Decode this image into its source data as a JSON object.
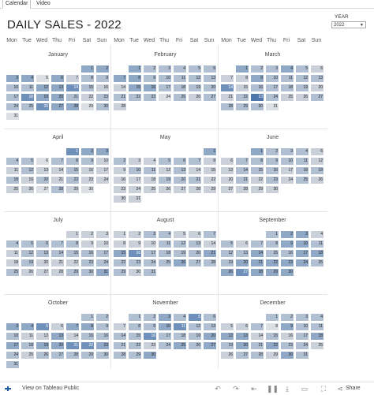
{
  "tabs": {
    "calendar": "Calendar",
    "video": "Video"
  },
  "title": "DAILY SALES - 2022",
  "year_filter": {
    "label": "YEAR",
    "value": "2022"
  },
  "weekdays": [
    "Mon",
    "Tue",
    "Wed",
    "Thu",
    "Fri",
    "Sat",
    "Sun"
  ],
  "colors": {
    "scale": [
      "#ffffff",
      "#dcdfe3",
      "#c9d0d9",
      "#b0bfd2",
      "#8fa8c6",
      "#6f90ba",
      "#4f77ab"
    ]
  },
  "months": [
    {
      "name": "January",
      "start": 5,
      "days": 31,
      "levels": [
        4,
        4,
        4,
        4,
        1,
        4,
        2,
        3,
        3,
        3,
        3,
        4,
        4,
        5,
        3,
        2,
        3,
        5,
        4,
        4,
        3,
        2,
        3,
        3,
        3,
        5,
        4,
        4,
        1,
        3,
        1
      ]
    },
    {
      "name": "February",
      "start": 1,
      "days": 28,
      "levels": [
        4,
        3,
        3,
        3,
        3,
        3,
        4,
        4,
        3,
        3,
        3,
        3,
        3,
        2,
        4,
        4,
        3,
        3,
        3,
        3,
        3,
        3,
        3,
        1,
        3,
        2,
        3,
        2
      ]
    },
    {
      "name": "March",
      "start": 1,
      "days": 31,
      "levels": [
        4,
        3,
        3,
        4,
        3,
        2,
        2,
        2,
        4,
        3,
        3,
        3,
        3,
        5,
        2,
        3,
        3,
        3,
        3,
        2,
        2,
        3,
        6,
        3,
        2,
        2,
        3,
        3,
        3,
        3,
        1
      ]
    },
    {
      "name": "April",
      "start": 4,
      "days": 30,
      "levels": [
        5,
        4,
        4,
        3,
        3,
        1,
        3,
        3,
        3,
        2,
        2,
        3,
        2,
        2,
        3,
        2,
        2,
        3,
        2,
        3,
        2,
        3,
        2,
        2,
        2,
        2,
        1,
        3,
        2,
        1
      ]
    },
    {
      "name": "May",
      "start": 6,
      "days": 31,
      "levels": [
        4,
        3,
        2,
        2,
        3,
        3,
        3,
        2,
        2,
        3,
        3,
        2,
        3,
        2,
        2,
        2,
        2,
        2,
        3,
        3,
        3,
        2,
        2,
        2,
        2,
        2,
        2,
        2,
        2,
        2,
        2
      ]
    },
    {
      "name": "June",
      "start": 2,
      "days": 30,
      "levels": [
        4,
        3,
        3,
        3,
        2,
        2,
        3,
        3,
        3,
        3,
        3,
        2,
        2,
        3,
        3,
        3,
        2,
        3,
        3,
        2,
        3,
        2,
        3,
        2,
        3,
        2,
        2,
        2,
        2,
        2
      ]
    },
    {
      "name": "July",
      "start": 4,
      "days": 31,
      "levels": [
        2,
        2,
        2,
        3,
        3,
        3,
        3,
        3,
        2,
        2,
        2,
        3,
        3,
        3,
        3,
        3,
        3,
        2,
        3,
        2,
        2,
        2,
        3,
        3,
        3,
        2,
        2,
        2,
        3,
        3,
        4
      ]
    },
    {
      "name": "August",
      "start": 0,
      "days": 31,
      "levels": [
        2,
        2,
        3,
        3,
        2,
        2,
        3,
        2,
        2,
        2,
        3,
        3,
        3,
        2,
        4,
        5,
        3,
        3,
        3,
        3,
        4,
        3,
        3,
        3,
        3,
        4,
        3,
        3,
        3,
        2,
        3
      ]
    },
    {
      "name": "September",
      "start": 3,
      "days": 30,
      "levels": [
        3,
        4,
        4,
        2,
        3,
        2,
        3,
        3,
        4,
        4,
        3,
        3,
        3,
        4,
        3,
        3,
        4,
        4,
        3,
        4,
        4,
        4,
        4,
        4,
        3,
        4,
        5,
        4,
        4,
        4
      ]
    },
    {
      "name": "October",
      "start": 5,
      "days": 31,
      "levels": [
        3,
        3,
        4,
        4,
        5,
        2,
        4,
        4,
        3,
        3,
        2,
        2,
        4,
        2,
        3,
        3,
        4,
        3,
        4,
        4,
        5,
        5,
        4,
        3,
        2,
        3,
        3,
        3,
        3,
        3,
        3
      ]
    },
    {
      "name": "November",
      "start": 1,
      "days": 30,
      "levels": [
        3,
        3,
        4,
        3,
        5,
        3,
        2,
        3,
        3,
        4,
        5,
        3,
        3,
        3,
        3,
        5,
        3,
        3,
        3,
        4,
        3,
        3,
        2,
        3,
        4,
        3,
        4,
        3,
        3,
        4
      ]
    },
    {
      "name": "December",
      "start": 3,
      "days": 31,
      "levels": [
        3,
        3,
        3,
        3,
        2,
        2,
        3,
        1,
        4,
        3,
        3,
        4,
        4,
        2,
        3,
        2,
        3,
        4,
        3,
        4,
        3,
        4,
        3,
        3,
        2,
        2,
        3,
        3,
        2,
        4,
        3
      ]
    }
  ],
  "footer": {
    "view_label": "View on Tableau Public",
    "share_label": "Share"
  }
}
